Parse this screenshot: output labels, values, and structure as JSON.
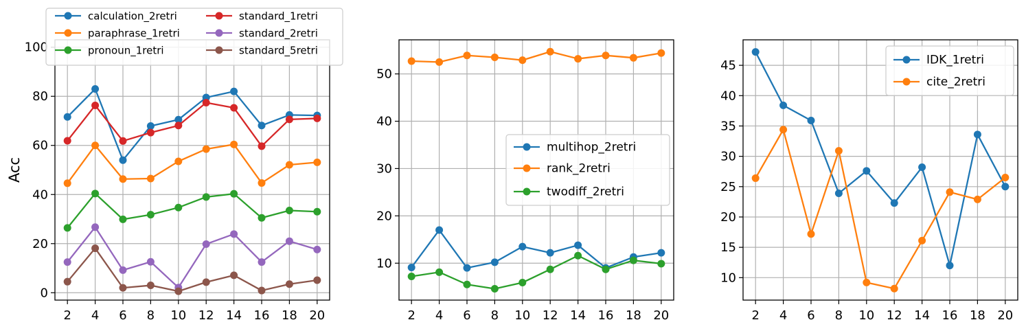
{
  "chart_data": [
    {
      "type": "line",
      "ylabel": "Acc",
      "xlabel": "",
      "x": [
        2,
        4,
        6,
        8,
        10,
        12,
        14,
        16,
        18,
        20
      ],
      "ylim": [
        -3,
        103
      ],
      "yticks": [
        0,
        20,
        40,
        60,
        80,
        100
      ],
      "grid": true,
      "legend": "top, 2 columns",
      "series": [
        {
          "name": "calculation_2retri",
          "color": "#1f77b4",
          "values": [
            71.6,
            83.0,
            54.0,
            67.9,
            70.5,
            79.5,
            82.0,
            68.1,
            72.4,
            72.2
          ]
        },
        {
          "name": "paraphrase_1retri",
          "color": "#ff7f0e",
          "values": [
            44.6,
            60.0,
            46.3,
            46.5,
            53.5,
            58.5,
            60.4,
            44.7,
            52.1,
            53.1
          ]
        },
        {
          "name": "pronoun_1retri",
          "color": "#2ca02c",
          "values": [
            26.4,
            40.4,
            29.9,
            31.8,
            34.7,
            39.0,
            40.3,
            30.5,
            33.5,
            33.0
          ]
        },
        {
          "name": "standard_1retri",
          "color": "#d62728",
          "values": [
            61.9,
            76.3,
            61.8,
            65.2,
            68.1,
            77.4,
            75.3,
            59.7,
            70.6,
            71.0
          ]
        },
        {
          "name": "standard_2retri",
          "color": "#9467bd",
          "values": [
            12.5,
            26.7,
            9.2,
            12.6,
            2.1,
            19.8,
            23.9,
            12.5,
            21.0,
            17.6
          ]
        },
        {
          "name": "standard_5retri",
          "color": "#8c564b",
          "values": [
            4.5,
            18.1,
            2.0,
            3.0,
            0.6,
            4.3,
            7.1,
            0.9,
            3.5,
            5.1
          ]
        }
      ]
    },
    {
      "type": "line",
      "xlabel": "",
      "ylabel": "",
      "x": [
        2,
        4,
        6,
        8,
        10,
        12,
        14,
        16,
        18,
        20
      ],
      "ylim": [
        2.2,
        57.2
      ],
      "yticks": [
        10,
        20,
        30,
        40,
        50
      ],
      "grid": true,
      "legend": "center-right",
      "series": [
        {
          "name": "multihop_2retri",
          "color": "#1f77b4",
          "values": [
            9.1,
            17.0,
            9.0,
            10.2,
            13.5,
            12.2,
            13.8,
            9.0,
            11.3,
            12.2
          ]
        },
        {
          "name": "rank_2retri",
          "color": "#ff7f0e",
          "values": [
            52.7,
            52.5,
            53.9,
            53.5,
            52.9,
            54.7,
            53.2,
            53.9,
            53.4,
            54.4
          ]
        },
        {
          "name": "twodiff_2retri",
          "color": "#2ca02c",
          "values": [
            7.2,
            8.1,
            5.5,
            4.6,
            5.9,
            8.7,
            11.6,
            8.7,
            10.6,
            9.9
          ]
        }
      ]
    },
    {
      "type": "line",
      "xlabel": "",
      "ylabel": "",
      "x": [
        2,
        4,
        6,
        8,
        10,
        12,
        14,
        16,
        18,
        20
      ],
      "ylim": [
        6.3,
        49.2
      ],
      "yticks": [
        10,
        15,
        20,
        25,
        30,
        35,
        40,
        45
      ],
      "grid": true,
      "legend": "top-right",
      "series": [
        {
          "name": "IDK_1retri",
          "color": "#1f77b4",
          "values": [
            47.2,
            38.4,
            35.9,
            23.9,
            27.6,
            22.3,
            28.2,
            12.0,
            33.6,
            25.0
          ]
        },
        {
          "name": "cite_2retri",
          "color": "#ff7f0e",
          "values": [
            26.4,
            34.4,
            17.2,
            30.9,
            9.2,
            8.2,
            16.1,
            24.1,
            22.9,
            26.5
          ]
        }
      ]
    }
  ]
}
